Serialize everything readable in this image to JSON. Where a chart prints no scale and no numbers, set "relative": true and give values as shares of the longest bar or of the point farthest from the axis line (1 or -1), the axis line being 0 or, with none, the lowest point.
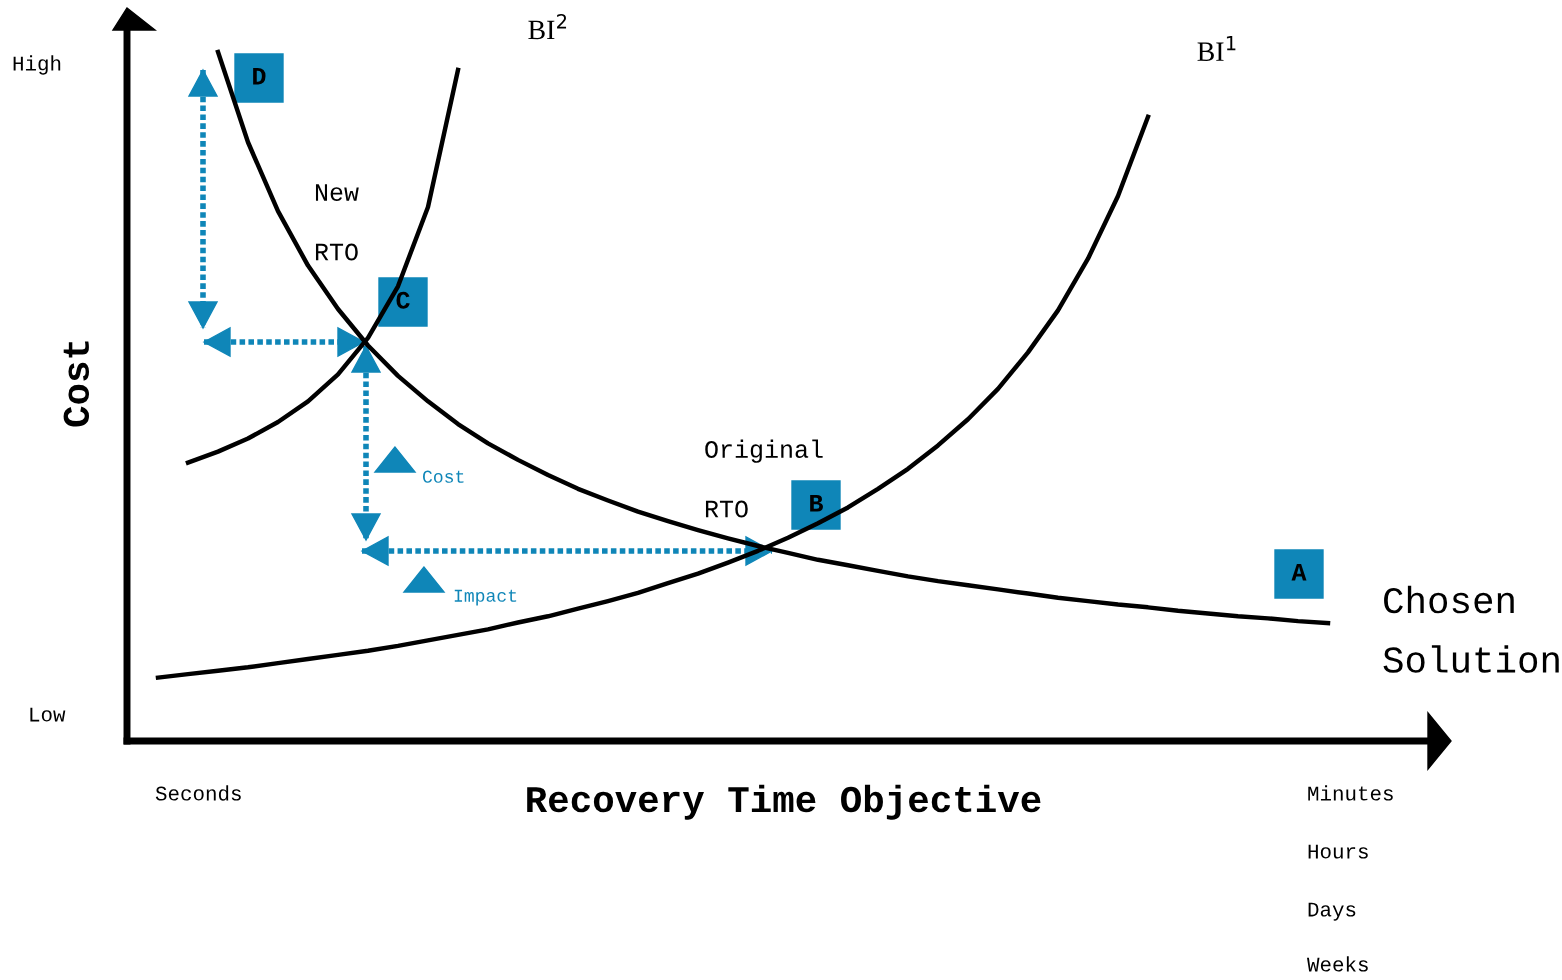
{
  "chart_data": {
    "type": "line",
    "relative": true,
    "xlabel": "Recovery Time Objective",
    "ylabel": "Cost",
    "line_style": "solid",
    "categories": [
      null,
      null,
      null,
      null,
      null,
      null,
      null,
      null,
      null,
      null,
      null,
      null,
      null,
      null,
      null,
      null,
      null,
      null,
      null,
      null,
      null,
      null,
      null,
      null,
      null,
      null,
      null,
      null,
      null,
      null,
      null,
      null,
      null,
      null,
      null,
      null,
      null,
      null,
      null,
      null
    ],
    "series": [
      {
        "color": "#000000",
        "values": [
          null,
          null,
          1.0,
          0.869,
          0.769,
          0.69,
          0.627,
          0.574,
          0.53,
          0.493,
          0.46,
          0.432,
          0.408,
          0.386,
          0.366,
          0.349,
          0.333,
          0.319,
          0.306,
          0.294,
          0.283,
          0.273,
          0.263,
          0.255,
          0.247,
          0.239,
          0.232,
          0.226,
          0.22,
          0.214,
          0.208,
          0.203,
          0.198,
          0.194,
          0.189,
          0.185,
          0.181,
          0.178,
          0.174,
          0.171
        ]
      },
      {
        "name": "BI$^{1}$",
        "color": "#000000",
        "values": [
          0.092,
          0.097,
          0.102,
          0.107,
          0.113,
          0.119,
          0.125,
          0.131,
          0.138,
          0.146,
          0.154,
          0.162,
          0.172,
          0.181,
          0.192,
          0.203,
          0.215,
          0.229,
          0.243,
          0.259,
          0.276,
          0.295,
          0.316,
          0.339,
          0.366,
          0.395,
          0.429,
          0.467,
          0.511,
          0.564,
          0.625,
          0.7,
          0.791,
          0.906,
          null,
          null,
          null,
          null,
          null,
          null
        ]
      },
      {
        "name": "BI$^{2}$",
        "color": "#000000",
        "values": [
          null,
          0.404,
          0.42,
          0.439,
          0.463,
          0.493,
          0.532,
          0.585,
          0.66,
          0.775,
          0.974,
          null,
          null,
          null,
          null,
          null,
          null,
          null,
          null,
          null,
          null,
          null,
          null,
          null,
          null,
          null,
          null,
          null,
          null,
          null,
          null,
          null,
          null,
          null,
          null,
          null,
          null,
          null,
          null,
          null
        ]
      }
    ],
    "annotations": [
      "High",
      "Low",
      "Seconds",
      "Minutes",
      "Hours",
      "Days",
      "Weeks",
      "New\nRTO",
      "Original\nRTO",
      "Chosen\nSolution",
      "Cost",
      "Impact",
      "A",
      "B",
      "C",
      "D"
    ]
  }
}
